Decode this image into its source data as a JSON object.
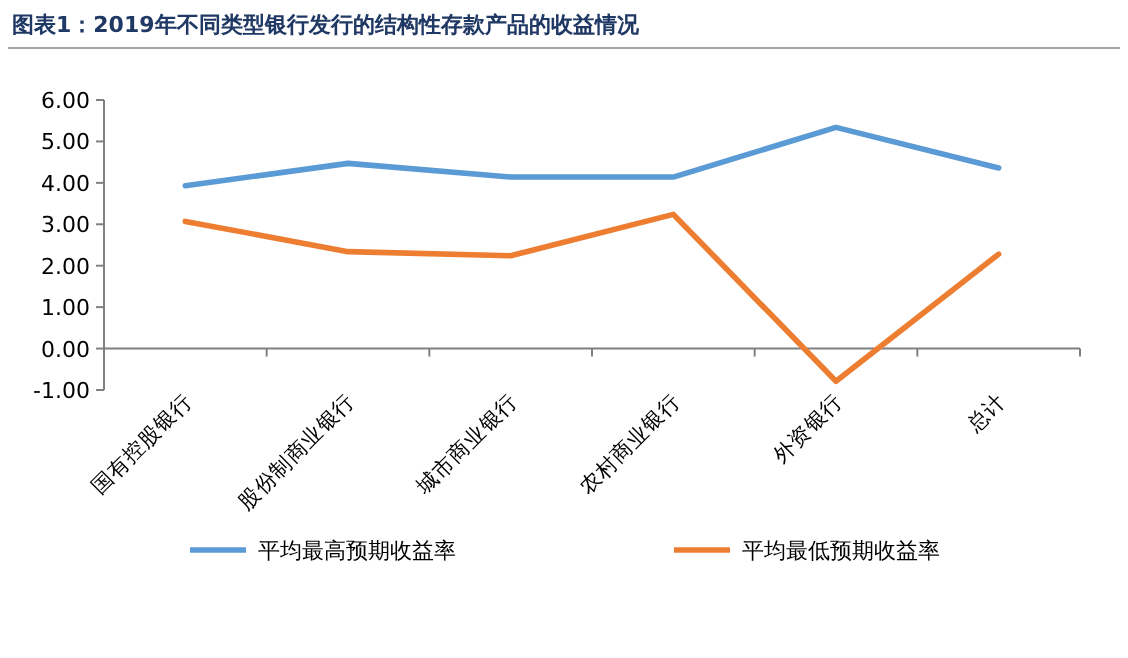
{
  "chart_data": {
    "type": "line",
    "title": "图表1：2019年不同类型银行发行的结构性存款产品的收益情况",
    "categories": [
      "国有控股银行",
      "股份制商业银行",
      "城市商业银行",
      "农村商业银行",
      "外资银行",
      "总计"
    ],
    "series": [
      {
        "name": "平均最高预期收益率",
        "color": "#5b9bd5",
        "values": [
          3.93,
          4.47,
          4.14,
          4.14,
          5.34,
          4.36
        ]
      },
      {
        "name": "平均最低预期收益率",
        "color": "#ed7d31",
        "values": [
          3.07,
          2.34,
          2.24,
          3.24,
          -0.79,
          2.28
        ]
      }
    ],
    "ylim": [
      -1,
      6
    ],
    "yticks": [
      {
        "value": -1,
        "label": "-1.00"
      },
      {
        "value": 0,
        "label": "0.00"
      },
      {
        "value": 1,
        "label": "1.00"
      },
      {
        "value": 2,
        "label": "2.00"
      },
      {
        "value": 3,
        "label": "3.00"
      },
      {
        "value": 4,
        "label": "4.00"
      },
      {
        "value": 5,
        "label": "5.00"
      },
      {
        "value": 6,
        "label": "6.00"
      }
    ],
    "grid": false,
    "legend": "bottom",
    "marker": "none",
    "line_style": "solid"
  }
}
